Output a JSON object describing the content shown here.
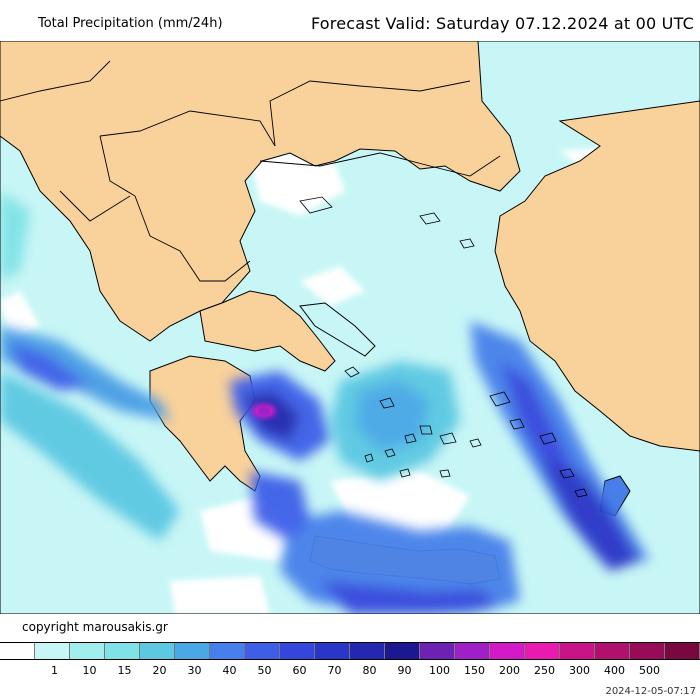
{
  "header": {
    "title": "Total Precipitation (mm/24h)",
    "valid_label": "Forecast Valid:",
    "valid_time": "Saturday 07.12.2024 at 00 UTC"
  },
  "footer": {
    "copyright": "copyright marousakis.gr",
    "timestamp": "2024-12-05-07:17"
  },
  "colors": {
    "land": "#f8d19b",
    "sea_dry": "#ffffff",
    "coast": "#000000",
    "border": "#000000"
  },
  "legend": {
    "bins": [
      {
        "color": "#ffffff"
      },
      {
        "color": "#c8f6f6",
        "label": "1"
      },
      {
        "color": "#a0eeee",
        "label": "10"
      },
      {
        "color": "#7ee2e6",
        "label": "15"
      },
      {
        "color": "#5cc8e2",
        "label": "20"
      },
      {
        "color": "#4aa8e6",
        "label": "30"
      },
      {
        "color": "#4680ea",
        "label": "40"
      },
      {
        "color": "#3e5ee8",
        "label": "50"
      },
      {
        "color": "#3446dc",
        "label": "60"
      },
      {
        "color": "#2a36c8",
        "label": "70"
      },
      {
        "color": "#2428b0",
        "label": "80"
      },
      {
        "color": "#1c1890",
        "label": "90"
      },
      {
        "color": "#6e22b4",
        "label": "100"
      },
      {
        "color": "#a020c8",
        "label": "150"
      },
      {
        "color": "#d41ac8",
        "label": "200"
      },
      {
        "color": "#e81ab0",
        "label": "250"
      },
      {
        "color": "#c81488",
        "label": "300"
      },
      {
        "color": "#b0106e",
        "label": "400"
      },
      {
        "color": "#960c58",
        "label": "500"
      },
      {
        "color": "#7a0840"
      }
    ]
  }
}
